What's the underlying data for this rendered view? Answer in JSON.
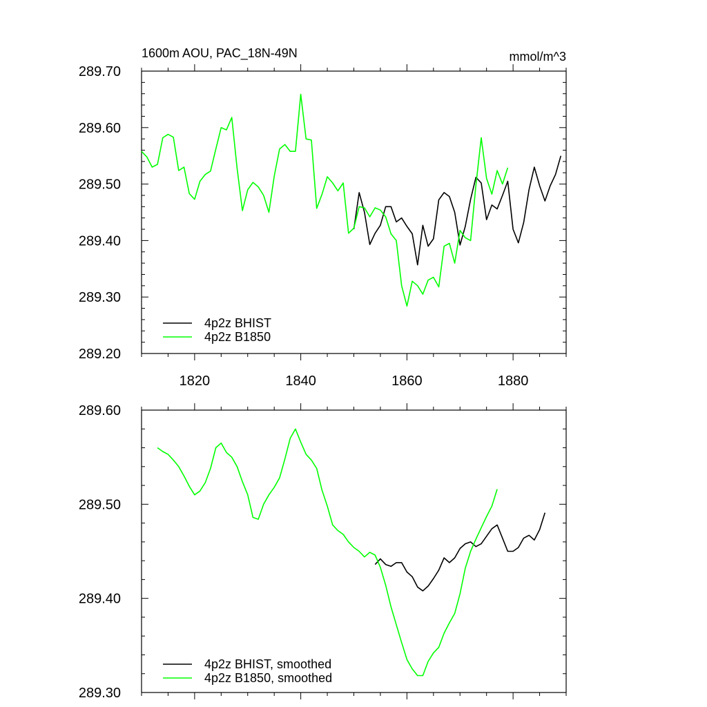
{
  "chart_data": [
    {
      "type": "line",
      "title": "1600m AOU, PAC_18N-49N",
      "units": "mmol/m^3",
      "xlabel": "",
      "ylabel": "",
      "xlim": [
        1810,
        1890
      ],
      "ylim": [
        289.2,
        289.7
      ],
      "x_ticks": [
        1820,
        1840,
        1860,
        1880
      ],
      "x_tick_labels": [
        "1820",
        "1840",
        "1860",
        "1880"
      ],
      "y_ticks": [
        289.2,
        289.3,
        289.4,
        289.5,
        289.6,
        289.7
      ],
      "y_tick_labels": [
        "289.20",
        "289.30",
        "289.40",
        "289.50",
        "289.60",
        "289.70"
      ],
      "grid": false,
      "legend_position": "bottom-left",
      "series": [
        {
          "name": "4p2z BHIST",
          "color": "#000000",
          "x": [
            1850,
            1851,
            1852,
            1853,
            1854,
            1855,
            1856,
            1857,
            1858,
            1859,
            1860,
            1861,
            1862,
            1863,
            1864,
            1865,
            1866,
            1867,
            1868,
            1869,
            1870,
            1871,
            1872,
            1873,
            1874,
            1875,
            1876,
            1877,
            1878,
            1879,
            1880,
            1881,
            1882,
            1883,
            1884,
            1885,
            1886,
            1887,
            1888,
            1889
          ],
          "values": [
            289.42,
            289.485,
            289.45,
            289.393,
            289.413,
            289.427,
            289.46,
            289.46,
            289.433,
            289.44,
            289.425,
            289.412,
            289.357,
            289.427,
            289.39,
            289.403,
            289.472,
            289.485,
            289.478,
            289.45,
            289.392,
            289.425,
            289.473,
            289.512,
            289.502,
            289.437,
            289.463,
            289.456,
            289.48,
            289.505,
            289.42,
            289.396,
            289.432,
            289.49,
            289.53,
            289.497,
            289.47,
            289.497,
            289.517,
            289.55
          ]
        },
        {
          "name": "4p2z B1850",
          "color": "#00ff00",
          "x": [
            1810,
            1811,
            1812,
            1813,
            1814,
            1815,
            1816,
            1817,
            1818,
            1819,
            1820,
            1821,
            1822,
            1823,
            1824,
            1825,
            1826,
            1827,
            1828,
            1829,
            1830,
            1831,
            1832,
            1833,
            1834,
            1835,
            1836,
            1837,
            1838,
            1839,
            1840,
            1841,
            1842,
            1843,
            1844,
            1845,
            1846,
            1847,
            1848,
            1849,
            1850,
            1851,
            1852,
            1853,
            1854,
            1855,
            1856,
            1857,
            1858,
            1859,
            1860,
            1861,
            1862,
            1863,
            1864,
            1865,
            1866,
            1867,
            1868,
            1869,
            1870,
            1871,
            1872,
            1873,
            1874,
            1875,
            1876,
            1877,
            1878,
            1879
          ],
          "values": [
            289.558,
            289.548,
            289.53,
            289.535,
            289.582,
            289.588,
            289.583,
            289.524,
            289.53,
            289.483,
            289.473,
            289.505,
            289.517,
            289.523,
            289.562,
            289.6,
            289.596,
            289.618,
            289.528,
            289.453,
            289.49,
            289.503,
            289.495,
            289.48,
            289.45,
            289.514,
            289.562,
            289.57,
            289.558,
            289.558,
            289.659,
            289.58,
            289.578,
            289.457,
            289.482,
            289.513,
            289.502,
            289.488,
            289.502,
            289.413,
            289.422,
            289.46,
            289.458,
            289.442,
            289.458,
            289.454,
            289.442,
            289.412,
            289.4,
            289.32,
            289.284,
            289.328,
            289.32,
            289.305,
            289.33,
            289.335,
            289.318,
            289.39,
            289.395,
            289.36,
            289.418,
            289.405,
            289.4,
            289.498,
            289.582,
            289.51,
            289.482,
            289.524,
            289.5,
            289.529
          ]
        }
      ]
    },
    {
      "type": "line",
      "title": "",
      "xlabel": "",
      "ylabel": "",
      "xlim": [
        1810,
        1890
      ],
      "ylim": [
        289.3,
        289.6
      ],
      "x_ticks": [
        1820,
        1840,
        1860,
        1880
      ],
      "x_tick_labels": [],
      "y_ticks": [
        289.3,
        289.4,
        289.5,
        289.6
      ],
      "y_tick_labels": [
        "289.30",
        "289.40",
        "289.50",
        "289.60"
      ],
      "grid": false,
      "legend_position": "bottom-left",
      "series": [
        {
          "name": "4p2z BHIST, smoothed",
          "color": "#000000",
          "x": [
            1854,
            1855,
            1856,
            1857,
            1858,
            1859,
            1860,
            1861,
            1862,
            1863,
            1864,
            1865,
            1866,
            1867,
            1868,
            1869,
            1870,
            1871,
            1872,
            1873,
            1874,
            1875,
            1876,
            1877,
            1878,
            1879,
            1880,
            1881,
            1882,
            1883,
            1884,
            1885,
            1886
          ],
          "values": [
            289.436,
            289.442,
            289.436,
            289.434,
            289.438,
            289.438,
            289.428,
            289.423,
            289.412,
            289.408,
            289.413,
            289.421,
            289.43,
            289.443,
            289.438,
            289.443,
            289.453,
            289.458,
            289.46,
            289.455,
            289.458,
            289.466,
            289.474,
            289.478,
            289.464,
            289.45,
            289.45,
            289.454,
            289.464,
            289.467,
            289.462,
            289.473,
            289.491
          ]
        },
        {
          "name": "4p2z B1850, smoothed",
          "color": "#00ff00",
          "x": [
            1813,
            1814,
            1815,
            1816,
            1817,
            1818,
            1819,
            1820,
            1821,
            1822,
            1823,
            1824,
            1825,
            1826,
            1827,
            1828,
            1829,
            1830,
            1831,
            1832,
            1833,
            1834,
            1835,
            1836,
            1837,
            1838,
            1839,
            1840,
            1841,
            1842,
            1843,
            1844,
            1845,
            1846,
            1847,
            1848,
            1849,
            1850,
            1851,
            1852,
            1853,
            1854,
            1855,
            1856,
            1857,
            1858,
            1859,
            1860,
            1861,
            1862,
            1863,
            1864,
            1865,
            1866,
            1867,
            1868,
            1869,
            1870,
            1871,
            1872,
            1873,
            1874,
            1875,
            1876,
            1877
          ],
          "values": [
            289.56,
            289.556,
            289.553,
            289.547,
            289.54,
            289.53,
            289.519,
            289.51,
            289.514,
            289.523,
            289.538,
            289.56,
            289.565,
            289.555,
            289.55,
            289.54,
            289.524,
            289.51,
            289.486,
            289.484,
            289.5,
            289.51,
            289.518,
            289.528,
            289.548,
            289.57,
            289.58,
            289.566,
            289.553,
            289.547,
            289.538,
            289.515,
            289.498,
            289.478,
            289.472,
            289.468,
            289.46,
            289.454,
            289.45,
            289.444,
            289.449,
            289.446,
            289.433,
            289.414,
            289.391,
            289.372,
            289.353,
            289.335,
            289.325,
            289.318,
            289.318,
            289.333,
            289.342,
            289.348,
            289.363,
            289.374,
            289.384,
            289.405,
            289.432,
            289.45,
            289.463,
            289.475,
            289.487,
            289.498,
            289.516
          ]
        }
      ]
    }
  ]
}
